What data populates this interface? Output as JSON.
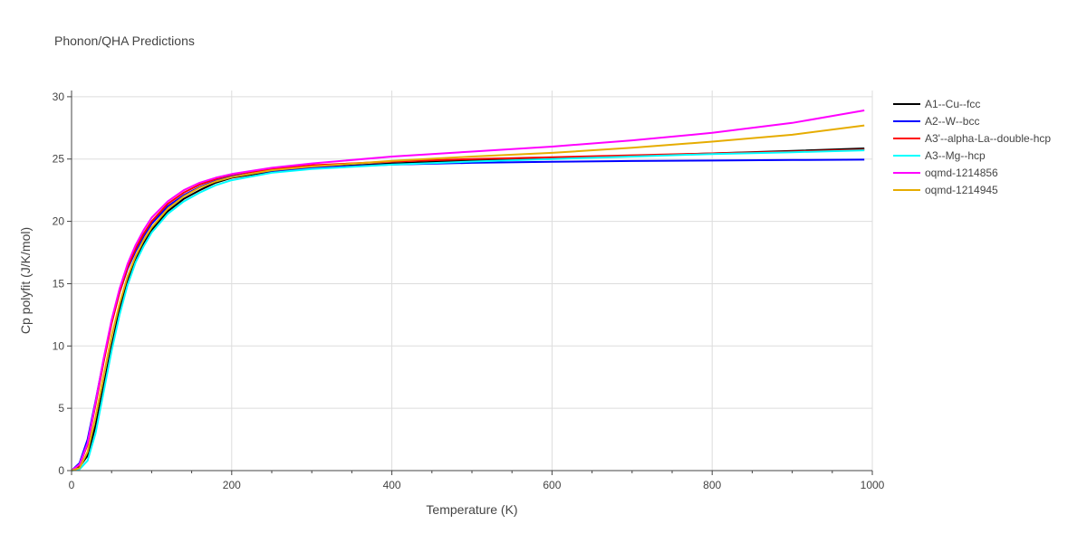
{
  "chart_data": {
    "type": "line",
    "title": "Phonon/QHA Predictions",
    "xlabel": "Temperature (K)",
    "ylabel": "Cp polyfit (J/K/mol)",
    "xlim": [
      0,
      1000
    ],
    "ylim": [
      0,
      30.5
    ],
    "xticks": [
      0,
      200,
      400,
      600,
      800,
      1000
    ],
    "yticks": [
      0,
      5,
      10,
      15,
      20,
      25,
      30
    ],
    "grid": true,
    "legend_position": "right",
    "series": [
      {
        "name": "A1--Cu--fcc",
        "color": "#000000",
        "x": [
          0,
          10,
          20,
          30,
          40,
          50,
          60,
          70,
          80,
          90,
          100,
          120,
          140,
          160,
          180,
          200,
          250,
          300,
          400,
          500,
          600,
          700,
          800,
          900,
          990
        ],
        "y": [
          0,
          0.3,
          1.2,
          3.6,
          6.8,
          10.0,
          12.9,
          15.2,
          16.9,
          18.2,
          19.3,
          20.8,
          21.8,
          22.5,
          23.1,
          23.5,
          24.0,
          24.3,
          24.65,
          24.9,
          25.05,
          25.25,
          25.45,
          25.65,
          25.85
        ]
      },
      {
        "name": "A2--W--bcc",
        "color": "#0000ff",
        "x": [
          0,
          10,
          20,
          30,
          40,
          50,
          60,
          70,
          80,
          90,
          100,
          120,
          140,
          160,
          180,
          200,
          250,
          300,
          400,
          500,
          600,
          700,
          800,
          900,
          990
        ],
        "y": [
          0,
          0.6,
          2.5,
          5.6,
          8.9,
          11.9,
          14.3,
          16.2,
          17.6,
          18.8,
          19.8,
          21.2,
          22.1,
          22.75,
          23.25,
          23.6,
          24.05,
          24.3,
          24.55,
          24.7,
          24.78,
          24.84,
          24.88,
          24.92,
          24.95
        ]
      },
      {
        "name": "A3'--alpha-La--double-hcp",
        "color": "#ff0000",
        "x": [
          0,
          10,
          20,
          30,
          40,
          50,
          60,
          70,
          80,
          90,
          100,
          120,
          140,
          160,
          180,
          200,
          250,
          300,
          400,
          500,
          600,
          700,
          800,
          900,
          990
        ],
        "y": [
          0,
          0.45,
          2.1,
          5.3,
          8.7,
          11.8,
          14.3,
          16.3,
          17.8,
          19.0,
          20.0,
          21.4,
          22.3,
          22.95,
          23.4,
          23.75,
          24.2,
          24.5,
          24.8,
          25.0,
          25.15,
          25.3,
          25.45,
          25.6,
          25.75
        ]
      },
      {
        "name": "A3--Mg--hcp",
        "color": "#00ffff",
        "x": [
          0,
          10,
          20,
          30,
          40,
          50,
          60,
          70,
          80,
          90,
          100,
          120,
          140,
          160,
          180,
          200,
          250,
          300,
          400,
          500,
          600,
          700,
          800,
          900,
          990
        ],
        "y": [
          0,
          0.1,
          0.8,
          3.0,
          6.3,
          9.6,
          12.5,
          14.9,
          16.7,
          18.0,
          19.1,
          20.6,
          21.6,
          22.3,
          22.9,
          23.3,
          23.9,
          24.2,
          24.55,
          24.8,
          25.0,
          25.2,
          25.4,
          25.55,
          25.7
        ]
      },
      {
        "name": "oqmd-1214856",
        "color": "#ff00ff",
        "x": [
          0,
          10,
          20,
          30,
          40,
          50,
          60,
          70,
          80,
          90,
          100,
          120,
          140,
          160,
          180,
          200,
          250,
          300,
          400,
          500,
          600,
          700,
          800,
          900,
          990
        ],
        "y": [
          0,
          0.5,
          2.2,
          5.5,
          9.0,
          12.1,
          14.6,
          16.6,
          18.1,
          19.3,
          20.3,
          21.6,
          22.5,
          23.1,
          23.5,
          23.8,
          24.3,
          24.65,
          25.2,
          25.6,
          26.0,
          26.5,
          27.1,
          27.9,
          28.9
        ]
      },
      {
        "name": "oqmd-1214945",
        "color": "#e6ac00",
        "x": [
          0,
          10,
          20,
          30,
          40,
          50,
          60,
          70,
          80,
          90,
          100,
          120,
          140,
          160,
          180,
          200,
          250,
          300,
          400,
          500,
          600,
          700,
          800,
          900,
          990
        ],
        "y": [
          0,
          0.2,
          1.5,
          4.3,
          7.6,
          10.8,
          13.4,
          15.6,
          17.2,
          18.5,
          19.5,
          21.0,
          22.0,
          22.7,
          23.2,
          23.55,
          24.1,
          24.4,
          24.85,
          25.2,
          25.5,
          25.9,
          26.4,
          26.95,
          27.7
        ]
      }
    ]
  }
}
